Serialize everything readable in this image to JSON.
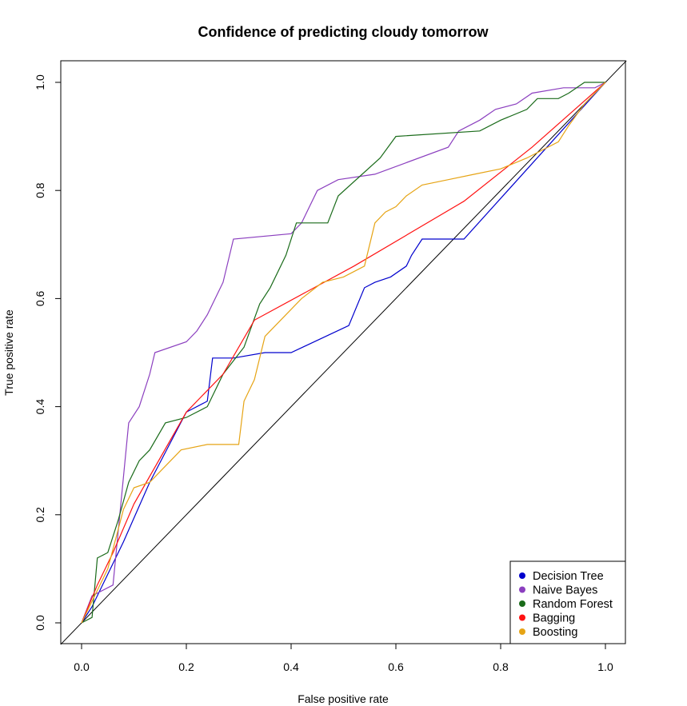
{
  "chart_data": {
    "type": "line",
    "title": "Confidence of predicting cloudy tomorrow",
    "xlabel": "False positive rate",
    "ylabel": "True positive rate",
    "xlim": [
      0,
      1
    ],
    "ylim": [
      0,
      1
    ],
    "xticks": [
      0.0,
      0.2,
      0.4,
      0.6,
      0.8,
      1.0
    ],
    "yticks": [
      0.0,
      0.2,
      0.4,
      0.6,
      0.8,
      1.0
    ],
    "xtick_labels": [
      "0.0",
      "0.2",
      "0.4",
      "0.6",
      "0.8",
      "1.0"
    ],
    "ytick_labels": [
      "0.0",
      "0.2",
      "0.4",
      "0.6",
      "0.8",
      "1.0"
    ],
    "grid": false,
    "legend_position": "bottom-right",
    "reference_line": {
      "x": [
        0,
        1
      ],
      "y": [
        0,
        1
      ],
      "color": "#000000"
    },
    "series": [
      {
        "name": "Decision Tree",
        "color": "#0000cd",
        "x": [
          0,
          0.02,
          0.04,
          0.08,
          0.13,
          0.2,
          0.24,
          0.25,
          0.29,
          0.35,
          0.4,
          0.51,
          0.54,
          0.56,
          0.59,
          0.62,
          0.63,
          0.65,
          0.73,
          1.0
        ],
        "y": [
          0,
          0.03,
          0.07,
          0.15,
          0.26,
          0.39,
          0.41,
          0.49,
          0.49,
          0.5,
          0.5,
          0.55,
          0.62,
          0.63,
          0.64,
          0.66,
          0.68,
          0.71,
          0.71,
          1.0
        ]
      },
      {
        "name": "Naive Bayes",
        "color": "#8b3fbf",
        "x": [
          0,
          0.02,
          0.06,
          0.09,
          0.11,
          0.13,
          0.14,
          0.2,
          0.22,
          0.24,
          0.27,
          0.29,
          0.4,
          0.42,
          0.45,
          0.49,
          0.56,
          0.7,
          0.72,
          0.76,
          0.79,
          0.83,
          0.86,
          0.92,
          0.98,
          1.0
        ],
        "y": [
          0,
          0.05,
          0.07,
          0.37,
          0.4,
          0.46,
          0.5,
          0.52,
          0.54,
          0.57,
          0.63,
          0.71,
          0.72,
          0.74,
          0.8,
          0.82,
          0.83,
          0.88,
          0.91,
          0.93,
          0.95,
          0.96,
          0.98,
          0.99,
          0.99,
          1.0
        ]
      },
      {
        "name": "Random Forest",
        "color": "#1a6b1a",
        "x": [
          0,
          0.02,
          0.03,
          0.05,
          0.07,
          0.09,
          0.11,
          0.13,
          0.16,
          0.2,
          0.24,
          0.27,
          0.31,
          0.34,
          0.36,
          0.39,
          0.41,
          0.47,
          0.49,
          0.57,
          0.6,
          0.76,
          0.8,
          0.85,
          0.87,
          0.91,
          0.93,
          0.96,
          1.0
        ],
        "y": [
          0,
          0.01,
          0.12,
          0.13,
          0.19,
          0.26,
          0.3,
          0.32,
          0.37,
          0.38,
          0.4,
          0.46,
          0.51,
          0.59,
          0.62,
          0.68,
          0.74,
          0.74,
          0.79,
          0.86,
          0.9,
          0.91,
          0.93,
          0.95,
          0.97,
          0.97,
          0.98,
          1.0,
          1.0
        ]
      },
      {
        "name": "Bagging",
        "color": "#ff1111",
        "x": [
          0,
          0.03,
          0.06,
          0.1,
          0.2,
          0.27,
          0.33,
          0.52,
          0.73,
          0.86,
          1.0
        ],
        "y": [
          0,
          0.07,
          0.13,
          0.22,
          0.39,
          0.46,
          0.56,
          0.66,
          0.78,
          0.88,
          1.0
        ]
      },
      {
        "name": "Boosting",
        "color": "#e6a415",
        "x": [
          0,
          0.02,
          0.05,
          0.08,
          0.1,
          0.13,
          0.19,
          0.24,
          0.3,
          0.31,
          0.33,
          0.35,
          0.38,
          0.4,
          0.42,
          0.46,
          0.5,
          0.54,
          0.56,
          0.58,
          0.6,
          0.62,
          0.65,
          0.7,
          0.75,
          0.8,
          0.85,
          0.91,
          0.93,
          0.96,
          1.0
        ],
        "y": [
          0,
          0.04,
          0.1,
          0.21,
          0.25,
          0.26,
          0.32,
          0.33,
          0.33,
          0.41,
          0.45,
          0.53,
          0.56,
          0.58,
          0.6,
          0.63,
          0.64,
          0.66,
          0.74,
          0.76,
          0.77,
          0.79,
          0.81,
          0.82,
          0.83,
          0.84,
          0.86,
          0.89,
          0.92,
          0.96,
          1.0
        ]
      }
    ]
  }
}
